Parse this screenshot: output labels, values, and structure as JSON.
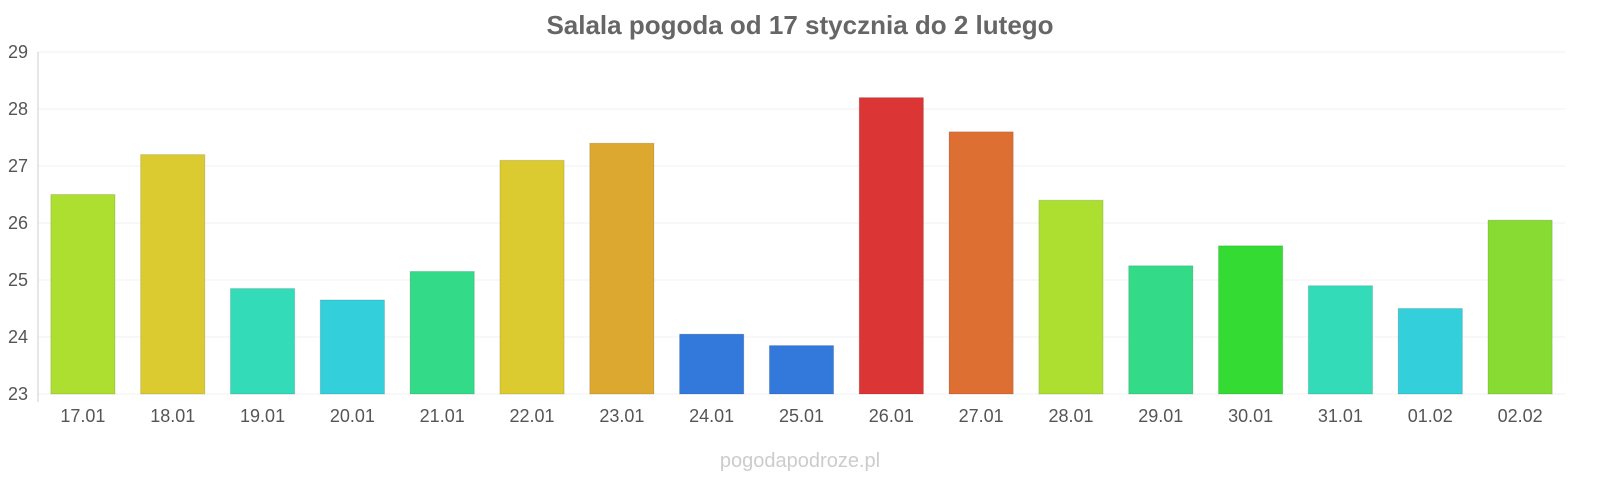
{
  "chart_data": {
    "type": "bar",
    "title": "Salala pogoda od 17 stycznia do 2 lutego",
    "xlabel": "",
    "ylabel": "",
    "ylim": [
      23,
      29
    ],
    "yticks": [
      23,
      24,
      25,
      26,
      27,
      28,
      29
    ],
    "grid": true,
    "categories": [
      "17.01",
      "18.01",
      "19.01",
      "20.01",
      "21.01",
      "22.01",
      "23.01",
      "24.01",
      "25.01",
      "26.01",
      "27.01",
      "28.01",
      "29.01",
      "30.01",
      "31.01",
      "01.02",
      "02.02"
    ],
    "values": [
      26.5,
      27.2,
      24.85,
      24.65,
      25.15,
      27.1,
      27.4,
      24.05,
      23.85,
      28.2,
      27.6,
      26.4,
      25.25,
      25.6,
      24.9,
      24.5,
      26.05
    ],
    "colors": [
      "#addf30",
      "#dbca30",
      "#33dbb8",
      "#33cfdb",
      "#33db88",
      "#dbca30",
      "#dda830",
      "#3378db",
      "#3378db",
      "#db3535",
      "#dd6f33",
      "#addf30",
      "#33db88",
      "#33db33",
      "#33dbb8",
      "#33cfdb",
      "#88db33"
    ]
  },
  "watermark": "pogodapodroze.pl"
}
